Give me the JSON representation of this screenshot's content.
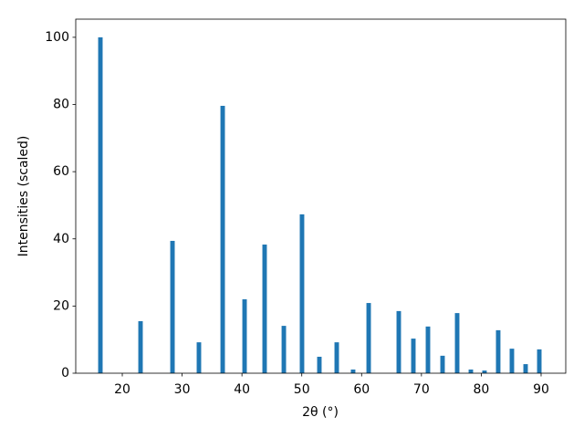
{
  "chart_data": {
    "type": "bar",
    "xlabel": "2θ (°)",
    "ylabel": "Intensities (scaled)",
    "x": [
      16.34,
      23.05,
      28.39,
      32.81,
      36.78,
      40.44,
      43.79,
      47.0,
      50.04,
      52.94,
      55.84,
      58.58,
      61.18,
      66.21,
      68.65,
      71.09,
      73.53,
      75.97,
      78.26,
      80.54,
      82.83,
      85.12,
      87.41,
      89.7
    ],
    "values": [
      100,
      15.5,
      39.4,
      9.2,
      79.6,
      22.0,
      38.3,
      14.1,
      47.3,
      4.9,
      9.2,
      1.1,
      20.9,
      18.5,
      10.3,
      13.9,
      5.2,
      17.9,
      1.1,
      0.8,
      12.8,
      7.3,
      2.7,
      7.1
    ],
    "color": "#1f77b4",
    "xlim": [
      12.22,
      94.12
    ],
    "xticks": [
      20,
      30,
      40,
      50,
      60,
      70,
      80,
      90
    ],
    "ylim": [
      0,
      105.4
    ],
    "yticks": [
      0,
      20,
      40,
      60,
      80,
      100
    ],
    "grid": false
  }
}
